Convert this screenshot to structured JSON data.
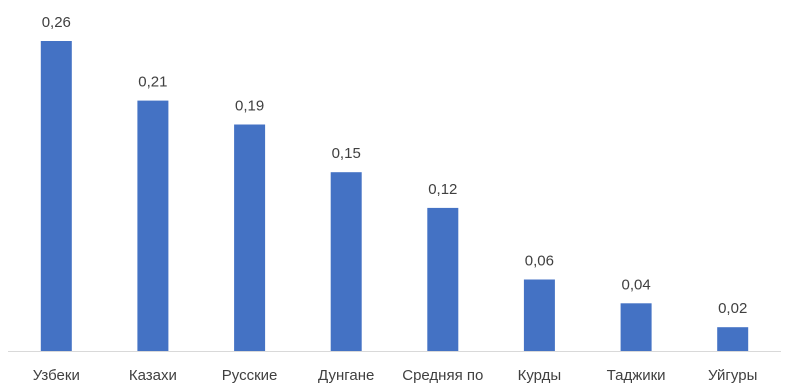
{
  "chart_data": {
    "type": "bar",
    "categories": [
      "Узбеки",
      "Казахи",
      "Русские",
      "Дунгане",
      "Средняя по",
      "Курды",
      "Таджики",
      "Уйгуры"
    ],
    "values": [
      0.26,
      0.21,
      0.19,
      0.15,
      0.12,
      0.06,
      0.04,
      0.02
    ],
    "data_labels": [
      "0,26",
      "0,21",
      "0,19",
      "0,15",
      "0,12",
      "0,06",
      "0,04",
      "0,02"
    ],
    "ylim": [
      0,
      0.26
    ],
    "grid": false,
    "legend": "none",
    "bar_color": "#4472C4",
    "axis_color": "#D9D9D9",
    "text_color": "#404040"
  }
}
